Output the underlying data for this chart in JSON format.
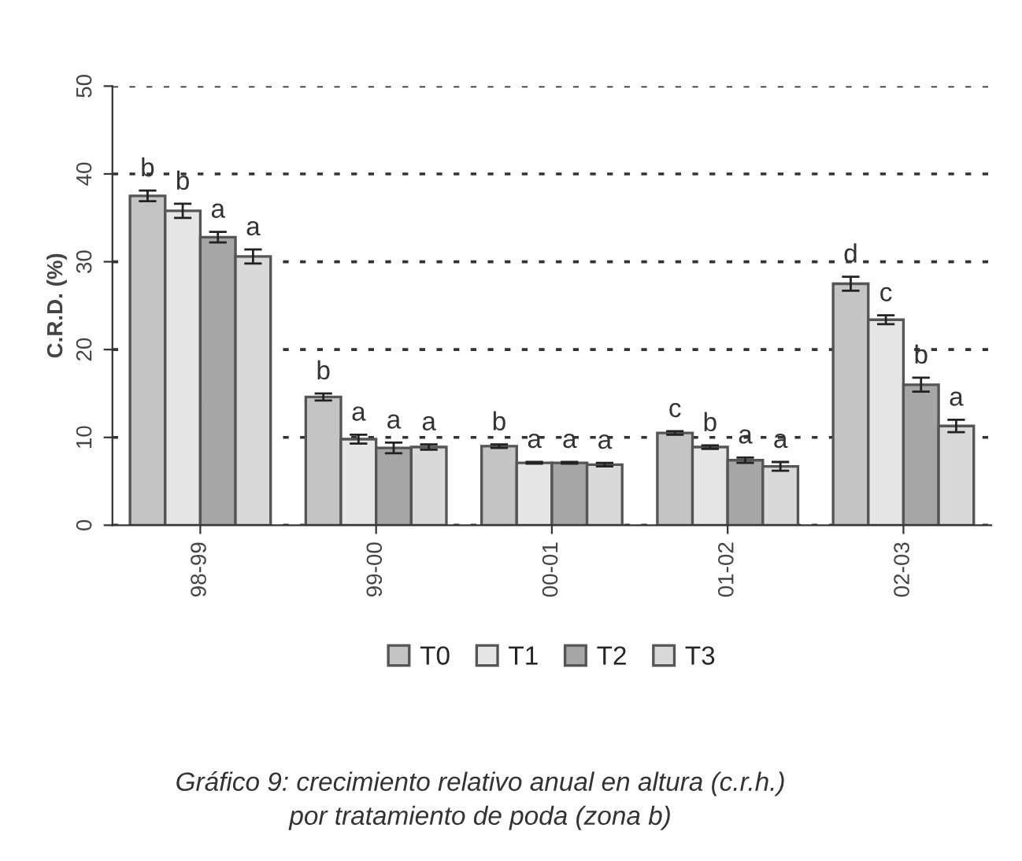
{
  "chart_data": {
    "type": "bar",
    "ylabel": "C.R.D. (%)",
    "categories": [
      "98-99",
      "99-00",
      "00-01",
      "01-02",
      "02-03"
    ],
    "series": [
      {
        "name": "T0",
        "color": "#c4c4c4",
        "values": [
          37.5,
          14.6,
          9.0,
          10.5,
          27.5
        ],
        "errors": [
          0.6,
          0.4,
          0.2,
          0.2,
          0.8
        ],
        "value_labels": [
          "b",
          "b",
          "b",
          "c",
          "d"
        ]
      },
      {
        "name": "T1",
        "color": "#e6e6e6",
        "values": [
          35.8,
          9.8,
          7.1,
          8.9,
          23.4
        ],
        "errors": [
          0.8,
          0.5,
          0.1,
          0.2,
          0.5
        ],
        "value_labels": [
          "b",
          "a",
          "a",
          "b",
          "c"
        ]
      },
      {
        "name": "T2",
        "color": "#a6a6a6",
        "values": [
          32.8,
          8.8,
          7.1,
          7.4,
          16.0
        ],
        "errors": [
          0.6,
          0.6,
          0.1,
          0.3,
          0.8
        ],
        "value_labels": [
          "a",
          "a",
          "a",
          "a",
          "b"
        ]
      },
      {
        "name": "T3",
        "color": "#d9d9d9",
        "values": [
          30.6,
          8.9,
          6.9,
          6.7,
          11.3
        ],
        "errors": [
          0.8,
          0.3,
          0.2,
          0.5,
          0.7
        ],
        "value_labels": [
          "a",
          "a",
          "a",
          "a",
          "a"
        ]
      }
    ],
    "ylim": [
      0,
      50
    ],
    "yticks": [
      0,
      10,
      20,
      30,
      40,
      50
    ],
    "grid": "y",
    "legend": "bottom",
    "annotations": [
      "Gráfico 9: crecimiento relativo anual en altura (c.r.h.)\npor tratamiento de poda (zona b)"
    ]
  }
}
